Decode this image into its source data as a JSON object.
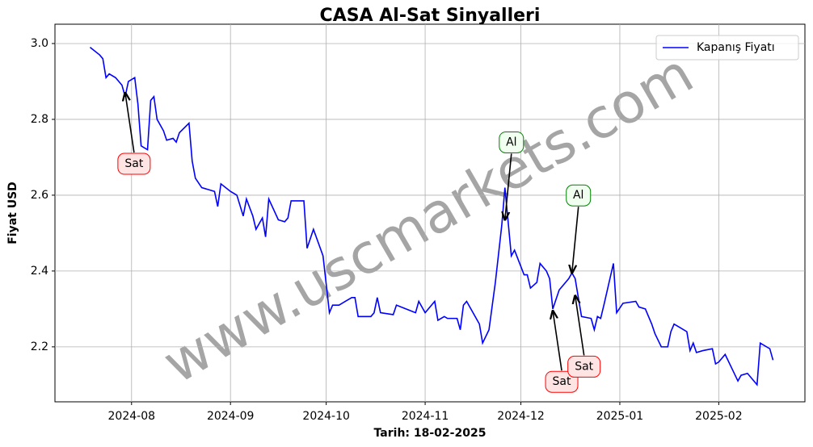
{
  "chart_data": {
    "type": "line",
    "title": "CASA Al-Sat Sinyalleri",
    "xlabel": "Tarih: 18-02-2025",
    "ylabel": "Fiyat USD",
    "watermark": "www.uscmarkets.com",
    "legend": "upper right",
    "grid": true,
    "xlim": [
      "2024-07-08",
      "2025-02-28"
    ],
    "ylim": [
      2.055,
      3.051
    ],
    "yticks": [
      {
        "value": 2.2,
        "label": "2.2"
      },
      {
        "value": 2.4,
        "label": "2.4"
      },
      {
        "value": 2.6,
        "label": "2.6"
      },
      {
        "value": 2.8,
        "label": "2.8"
      },
      {
        "value": 3.0,
        "label": "3.0"
      }
    ],
    "xticks": [
      {
        "value": "2024-08-01",
        "label": "2024-08"
      },
      {
        "value": "2024-09-01",
        "label": "2024-09"
      },
      {
        "value": "2024-10-01",
        "label": "2024-10"
      },
      {
        "value": "2024-11-01",
        "label": "2024-11"
      },
      {
        "value": "2024-12-01",
        "label": "2024-12"
      },
      {
        "value": "2025-01-01",
        "label": "2025-01"
      },
      {
        "value": "2025-02-01",
        "label": "2025-02"
      }
    ],
    "x": [
      "2024-07-19",
      "2024-07-22",
      "2024-07-23",
      "2024-07-24",
      "2024-07-25",
      "2024-07-27",
      "2024-07-29",
      "2024-07-30",
      "2024-07-31",
      "2024-08-02",
      "2024-08-03",
      "2024-08-04",
      "2024-08-06",
      "2024-08-07",
      "2024-08-08",
      "2024-08-09",
      "2024-08-11",
      "2024-08-12",
      "2024-08-14",
      "2024-08-15",
      "2024-08-16",
      "2024-08-19",
      "2024-08-20",
      "2024-08-21",
      "2024-08-23",
      "2024-08-27",
      "2024-08-28",
      "2024-08-29",
      "2024-09-01",
      "2024-09-03",
      "2024-09-05",
      "2024-09-06",
      "2024-09-08",
      "2024-09-09",
      "2024-09-11",
      "2024-09-12",
      "2024-09-13",
      "2024-09-16",
      "2024-09-18",
      "2024-09-19",
      "2024-09-20",
      "2024-09-24",
      "2024-09-25",
      "2024-09-27",
      "2024-09-30",
      "2024-10-02",
      "2024-10-03",
      "2024-10-05",
      "2024-10-07",
      "2024-10-09",
      "2024-10-10",
      "2024-10-11",
      "2024-10-15",
      "2024-10-16",
      "2024-10-17",
      "2024-10-18",
      "2024-10-22",
      "2024-10-23",
      "2024-10-26",
      "2024-10-29",
      "2024-10-30",
      "2024-11-01",
      "2024-11-04",
      "2024-11-05",
      "2024-11-07",
      "2024-11-08",
      "2024-11-11",
      "2024-11-12",
      "2024-11-13",
      "2024-11-14",
      "2024-11-18",
      "2024-11-19",
      "2024-11-21",
      "2024-11-23",
      "2024-11-25",
      "2024-11-26",
      "2024-11-28",
      "2024-11-29",
      "2024-12-02",
      "2024-12-03",
      "2024-12-04",
      "2024-12-06",
      "2024-12-07",
      "2024-12-09",
      "2024-12-10",
      "2024-12-11",
      "2024-12-13",
      "2024-12-16",
      "2024-12-17",
      "2024-12-18",
      "2024-12-20",
      "2024-12-23",
      "2024-12-24",
      "2024-12-25",
      "2024-12-26",
      "2024-12-27",
      "2024-12-30",
      "2024-12-31",
      "2025-01-02",
      "2025-01-06",
      "2025-01-07",
      "2025-01-09",
      "2025-01-11",
      "2025-01-12",
      "2025-01-14",
      "2025-01-16",
      "2025-01-17",
      "2025-01-18",
      "2025-01-20",
      "2025-01-22",
      "2025-01-23",
      "2025-01-24",
      "2025-01-25",
      "2025-01-27",
      "2025-01-30",
      "2025-01-31",
      "2025-02-01",
      "2025-02-03",
      "2025-02-05",
      "2025-02-07",
      "2025-02-08",
      "2025-02-10",
      "2025-02-12",
      "2025-02-13",
      "2025-02-14",
      "2025-02-17",
      "2025-02-18"
    ],
    "series": [
      {
        "name": "Kapanış Fiyatı",
        "color": "#0000ff",
        "values": [
          2.99,
          2.97,
          2.96,
          2.91,
          2.92,
          2.91,
          2.89,
          2.86,
          2.9,
          2.91,
          2.84,
          2.73,
          2.72,
          2.85,
          2.86,
          2.8,
          2.77,
          2.745,
          2.75,
          2.74,
          2.765,
          2.79,
          2.69,
          2.645,
          2.62,
          2.61,
          2.57,
          2.63,
          2.61,
          2.6,
          2.545,
          2.59,
          2.545,
          2.51,
          2.54,
          2.49,
          2.59,
          2.535,
          2.53,
          2.54,
          2.585,
          2.585,
          2.46,
          2.51,
          2.44,
          2.29,
          2.31,
          2.31,
          2.32,
          2.33,
          2.33,
          2.28,
          2.28,
          2.29,
          2.33,
          2.29,
          2.285,
          2.31,
          2.3,
          2.29,
          2.32,
          2.29,
          2.32,
          2.27,
          2.28,
          2.275,
          2.275,
          2.245,
          2.31,
          2.32,
          2.26,
          2.21,
          2.245,
          2.37,
          2.52,
          2.62,
          2.44,
          2.455,
          2.39,
          2.39,
          2.355,
          2.37,
          2.42,
          2.4,
          2.38,
          2.3,
          2.35,
          2.38,
          2.395,
          2.38,
          2.28,
          2.275,
          2.245,
          2.28,
          2.275,
          2.31,
          2.42,
          2.29,
          2.315,
          2.32,
          2.305,
          2.3,
          2.26,
          2.235,
          2.2,
          2.2,
          2.24,
          2.26,
          2.25,
          2.24,
          2.19,
          2.21,
          2.185,
          2.19,
          2.195,
          2.155,
          2.16,
          2.18,
          2.145,
          2.11,
          2.125,
          2.13,
          2.11,
          2.1,
          2.21,
          2.195,
          2.165
        ]
      }
    ],
    "annotations": [
      {
        "text": "Sat",
        "x": "2024-07-30",
        "y": 2.87,
        "color": "#ff0000"
      },
      {
        "text": "Al",
        "x": "2024-11-26",
        "y": 2.535,
        "color": "#008000"
      },
      {
        "text": "Sat",
        "x": "2024-12-11",
        "y": 2.295,
        "color": "#ff0000"
      },
      {
        "text": "Al",
        "x": "2024-12-17",
        "y": 2.395,
        "color": "#008000"
      },
      {
        "text": "Sat",
        "x": "2024-12-18",
        "y": 2.335,
        "color": "#ff0000"
      }
    ]
  }
}
